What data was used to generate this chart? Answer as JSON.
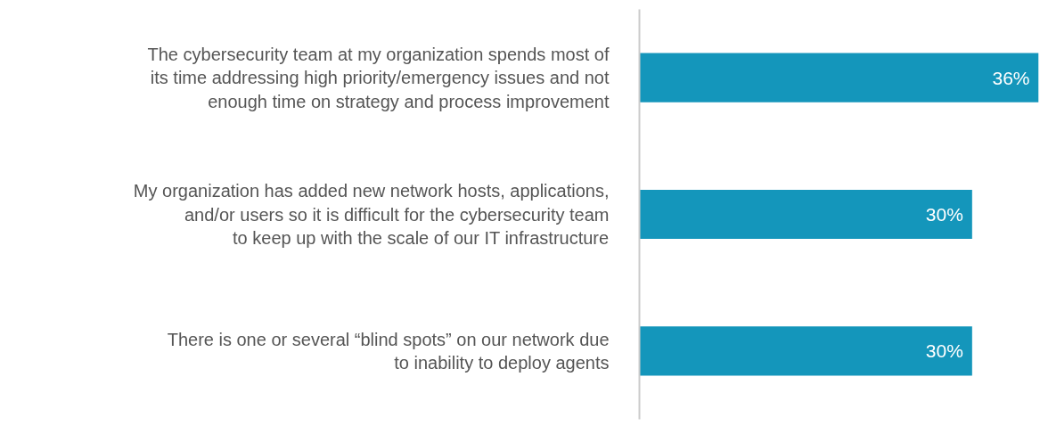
{
  "chart_data": {
    "type": "bar",
    "orientation": "horizontal",
    "categories": [
      "The cybersecurity team at my organization spends most of its time addressing high priority/emergency issues and not enough time on strategy and process improvement",
      "My organization has added new network hosts, applications, and/or users so it is difficult for the cybersecurity team to keep up with the scale of our IT infrastructure",
      "There is one or several “blind spots” on our network due to inability to deploy agents"
    ],
    "values": [
      36,
      30,
      30
    ],
    "value_labels": [
      "36%",
      "30%",
      "30%"
    ],
    "color": "#1496bb",
    "tick_labels": "y",
    "grid": false
  }
}
